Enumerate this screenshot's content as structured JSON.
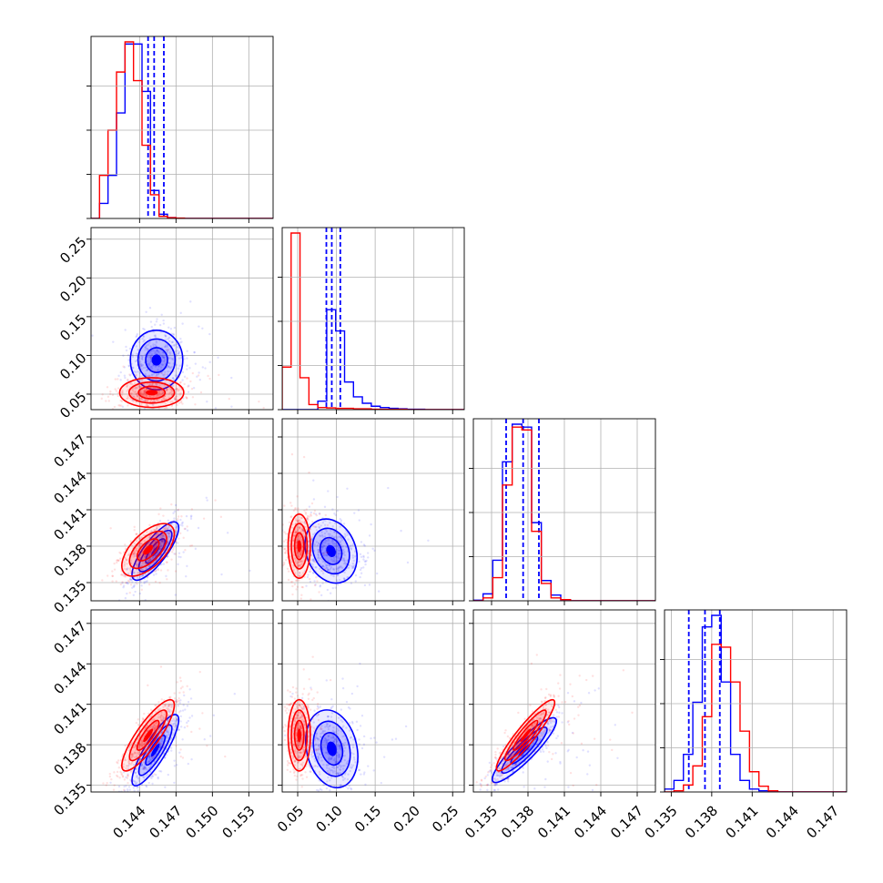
{
  "chart_data": {
    "type": "corner",
    "grid": true,
    "colors": {
      "blue": "#0000ff",
      "red": "#ff0000",
      "grid": "#b0b0b0",
      "frame": "#000000"
    },
    "series": [
      {
        "color": "#0000ff",
        "params": [
          {
            "quantiles": [
              0.1447,
              0.1452,
              0.146
            ],
            "hist": {
              "x0": 0.14,
              "w": 0.0007,
              "counts": [
                0.0,
                0.35,
                1.0,
                2.45,
                4.05,
                4.05,
                2.95,
                0.65,
                0.1,
                0.02,
                0,
                0,
                0,
                0,
                0,
                0,
                0,
                0,
                0
              ]
            }
          },
          {
            "quantiles": [
              0.087,
              0.094,
              0.105
            ],
            "hist": {
              "x0": 0.03,
              "w": 0.0115,
              "counts": [
                0,
                0,
                0,
                0,
                0.2,
                2.35,
                1.85,
                0.65,
                0.3,
                0.15,
                0.08,
                0.05,
                0.03,
                0.02,
                0.01,
                0.01,
                0,
                0,
                0
              ]
            }
          },
          {
            "quantiles": [
              0.1362,
              0.1376,
              0.1389
            ],
            "hist": {
              "x0": 0.1335,
              "w": 0.0008,
              "counts": [
                0.01,
                0.12,
                0.7,
                2.4,
                3.05,
                3.0,
                1.35,
                0.35,
                0.1,
                0.02,
                0,
                0,
                0,
                0,
                0,
                0,
                0,
                0,
                0
              ]
            }
          },
          {
            "quantiles": [
              0.1363,
              0.1375,
              0.1386
            ],
            "hist": {
              "x0": 0.1345,
              "w": 0.0007,
              "counts": [
                0.05,
                0.2,
                0.65,
                1.55,
                2.85,
                3.05,
                1.9,
                0.65,
                0.2,
                0.05,
                0.02,
                0,
                0,
                0,
                0,
                0,
                0,
                0,
                0
              ]
            }
          }
        ],
        "ellipses": [
          {
            "i": 0,
            "j": 1,
            "cx": 0.1454,
            "cy": 0.094,
            "sx": 0.0009,
            "sy": 0.016,
            "rho": 0.0
          },
          {
            "i": 0,
            "j": 2,
            "cx": 0.1453,
            "cy": 0.1376,
            "sx": 0.0008,
            "sy": 0.001,
            "rho": 0.8
          },
          {
            "i": 1,
            "j": 2,
            "cx": 0.093,
            "cy": 0.1376,
            "sx": 0.014,
            "sy": 0.0011,
            "rho": -0.2
          },
          {
            "i": 0,
            "j": 3,
            "cx": 0.1453,
            "cy": 0.1376,
            "sx": 0.0008,
            "sy": 0.0011,
            "rho": 0.85
          },
          {
            "i": 1,
            "j": 3,
            "cx": 0.094,
            "cy": 0.1377,
            "sx": 0.014,
            "sy": 0.0012,
            "rho": -0.2
          },
          {
            "i": 2,
            "j": 3,
            "cx": 0.1377,
            "cy": 0.1376,
            "sx": 0.0011,
            "sy": 0.001,
            "rho": 0.9
          }
        ]
      },
      {
        "color": "#ff0000",
        "params": [
          {
            "quantiles": [],
            "hist": {
              "x0": 0.14,
              "w": 0.0007,
              "counts": [
                0.0,
                1.0,
                2.05,
                3.4,
                4.1,
                3.2,
                1.7,
                0.55,
                0.05,
                0.02,
                0.01,
                0,
                0,
                0,
                0,
                0,
                0,
                0,
                0
              ]
            }
          },
          {
            "quantiles": [],
            "hist": {
              "x0": 0.03,
              "w": 0.0115,
              "counts": [
                1.0,
                4.15,
                0.75,
                0.12,
                0.05,
                0.04,
                0.03,
                0.03,
                0.02,
                0.02,
                0.01,
                0.01,
                0.01,
                0.01,
                0,
                0,
                0,
                0,
                0
              ]
            }
          },
          {
            "quantiles": [],
            "hist": {
              "x0": 0.1335,
              "w": 0.0008,
              "counts": [
                0.0,
                0.05,
                0.4,
                2.0,
                3.0,
                2.95,
                1.2,
                0.3,
                0.05,
                0.02,
                0,
                0,
                0,
                0,
                0,
                0,
                0,
                0,
                0
              ]
            }
          },
          {
            "quantiles": [],
            "hist": {
              "x0": 0.1345,
              "w": 0.0007,
              "counts": [
                0.0,
                0.02,
                0.12,
                0.45,
                1.3,
                2.55,
                2.5,
                1.9,
                1.05,
                0.35,
                0.1,
                0.02,
                0,
                0,
                0,
                0,
                0,
                0,
                0
              ]
            }
          }
        ],
        "ellipses": [
          {
            "i": 0,
            "j": 1,
            "cx": 0.145,
            "cy": 0.052,
            "sx": 0.0011,
            "sy": 0.008,
            "rho": 0.0
          },
          {
            "i": 0,
            "j": 2,
            "cx": 0.1447,
            "cy": 0.1377,
            "sx": 0.0009,
            "sy": 0.0009,
            "rho": 0.6
          },
          {
            "i": 1,
            "j": 2,
            "cx": 0.052,
            "cy": 0.138,
            "sx": 0.006,
            "sy": 0.0011,
            "rho": 0.0
          },
          {
            "i": 0,
            "j": 3,
            "cx": 0.1447,
            "cy": 0.1387,
            "sx": 0.0009,
            "sy": 0.0011,
            "rho": 0.85
          },
          {
            "i": 1,
            "j": 3,
            "cx": 0.052,
            "cy": 0.1387,
            "sx": 0.006,
            "sy": 0.0011,
            "rho": 0.0
          },
          {
            "i": 2,
            "j": 3,
            "cx": 0.1378,
            "cy": 0.1387,
            "sx": 0.001,
            "sy": 0.0011,
            "rho": 0.92
          }
        ]
      }
    ],
    "axes": [
      {
        "range": [
          0.14,
          0.155
        ],
        "ticks": [
          0.144,
          0.147,
          0.15,
          0.153
        ],
        "tick_labels": [
          "0.144",
          "0.147",
          "0.150",
          "0.153"
        ]
      },
      {
        "range": [
          0.03,
          0.265
        ],
        "ticks": [
          0.05,
          0.1,
          0.15,
          0.2,
          0.25
        ],
        "tick_labels": [
          "0.05",
          "0.10",
          "0.15",
          "0.20",
          "0.25"
        ]
      },
      {
        "range": [
          0.1335,
          0.1485
        ],
        "ticks": [
          0.135,
          0.138,
          0.141,
          0.144,
          0.147
        ],
        "tick_labels": [
          "0.135",
          "0.138",
          "0.141",
          "0.144",
          "0.147"
        ]
      },
      {
        "range": [
          0.1345,
          0.148
        ],
        "ticks": [
          0.135,
          0.138,
          0.141,
          0.144,
          0.147
        ],
        "tick_labels": [
          "0.135",
          "0.138",
          "0.141",
          "0.144",
          "0.147"
        ]
      }
    ]
  }
}
